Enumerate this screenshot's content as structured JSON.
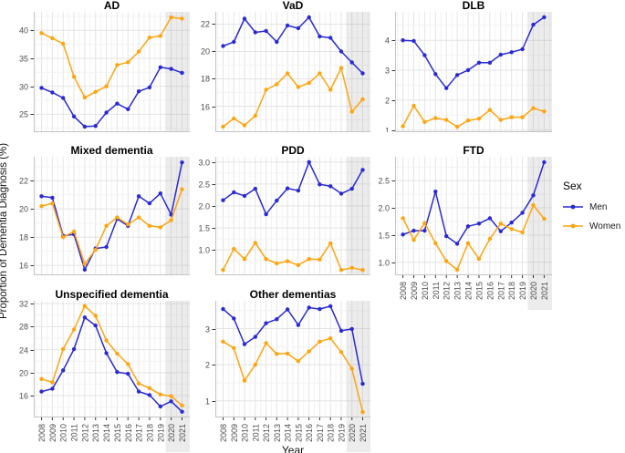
{
  "figure": {
    "y_axis_title": "Proportion of Dementia Diagnosis (%)",
    "x_axis_title": "Year",
    "highlight_years": [
      "2020",
      "2021"
    ]
  },
  "legend": {
    "title": "Sex",
    "entries": [
      {
        "label": "Men",
        "color": "#2a2ad2"
      },
      {
        "label": "Women",
        "color": "#ffa40e"
      }
    ]
  },
  "chart_data": [
    {
      "type": "line",
      "title": "AD",
      "x": [
        2008,
        2009,
        2010,
        2011,
        2012,
        2013,
        2014,
        2015,
        2016,
        2017,
        2018,
        2019,
        2020,
        2021
      ],
      "ylim": [
        21.8,
        43.3
      ],
      "yticks": [
        25,
        30,
        35,
        40
      ],
      "ytick_labels": [
        "25",
        "30",
        "35",
        "40"
      ],
      "series": [
        {
          "name": "Men",
          "values": [
            29.7,
            28.9,
            27.9,
            24.6,
            22.8,
            22.9,
            25.3,
            26.9,
            25.9,
            29.1,
            29.8,
            33.4,
            33.1,
            32.4
          ]
        },
        {
          "name": "Women",
          "values": [
            39.5,
            38.6,
            37.6,
            31.7,
            28.0,
            29.0,
            30.0,
            33.8,
            34.3,
            36.2,
            38.7,
            39.0,
            42.3,
            42.1
          ]
        }
      ]
    },
    {
      "type": "line",
      "title": "VaD",
      "x": [
        2008,
        2009,
        2010,
        2011,
        2012,
        2013,
        2014,
        2015,
        2016,
        2017,
        2018,
        2019,
        2020,
        2021
      ],
      "ylim": [
        14.1,
        22.9
      ],
      "yticks": [
        16,
        18,
        20,
        22
      ],
      "ytick_labels": [
        "16",
        "18",
        "20",
        "22"
      ],
      "series": [
        {
          "name": "Men",
          "values": [
            20.4,
            20.7,
            22.4,
            21.4,
            21.5,
            20.7,
            21.9,
            21.7,
            22.5,
            21.1,
            21.0,
            20.0,
            19.2,
            18.4
          ]
        },
        {
          "name": "Women",
          "values": [
            14.5,
            15.1,
            14.6,
            15.3,
            17.2,
            17.6,
            18.4,
            17.4,
            17.7,
            18.4,
            17.2,
            18.8,
            15.6,
            16.5
          ]
        }
      ]
    },
    {
      "type": "line",
      "title": "DLB",
      "x": [
        2008,
        2009,
        2010,
        2011,
        2012,
        2013,
        2014,
        2015,
        2016,
        2017,
        2018,
        2019,
        2020,
        2021
      ],
      "ylim": [
        0.93,
        4.95
      ],
      "yticks": [
        1,
        2,
        3,
        4
      ],
      "ytick_labels": [
        "1",
        "2",
        "3",
        "4"
      ],
      "series": [
        {
          "name": "Men",
          "values": [
            4.0,
            3.98,
            3.5,
            2.87,
            2.4,
            2.84,
            3.0,
            3.25,
            3.25,
            3.52,
            3.6,
            3.7,
            4.52,
            4.77
          ]
        },
        {
          "name": "Women",
          "values": [
            1.13,
            1.81,
            1.27,
            1.4,
            1.34,
            1.11,
            1.32,
            1.38,
            1.67,
            1.34,
            1.43,
            1.43,
            1.73,
            1.62
          ]
        }
      ]
    },
    {
      "type": "line",
      "title": "Mixed dementia",
      "x": [
        2008,
        2009,
        2010,
        2011,
        2012,
        2013,
        2014,
        2015,
        2016,
        2017,
        2018,
        2019,
        2020,
        2021
      ],
      "ylim": [
        15.3,
        23.7
      ],
      "yticks": [
        16,
        18,
        20,
        22
      ],
      "ytick_labels": [
        "16",
        "18",
        "20",
        "22"
      ],
      "series": [
        {
          "name": "Men",
          "values": [
            20.9,
            20.8,
            18.1,
            18.2,
            15.7,
            17.2,
            17.3,
            19.3,
            18.8,
            20.9,
            20.4,
            21.1,
            19.6,
            23.3
          ]
        },
        {
          "name": "Women",
          "values": [
            20.2,
            20.4,
            18.0,
            18.4,
            16.1,
            17.1,
            18.8,
            19.4,
            18.9,
            19.4,
            18.8,
            18.7,
            19.2,
            21.4
          ]
        }
      ]
    },
    {
      "type": "line",
      "title": "PDD",
      "x": [
        2008,
        2009,
        2010,
        2011,
        2012,
        2013,
        2014,
        2015,
        2016,
        2017,
        2018,
        2019,
        2020,
        2021
      ],
      "ylim": [
        0.42,
        3.12
      ],
      "yticks": [
        1.0,
        1.5,
        2.0,
        2.5,
        3.0
      ],
      "ytick_labels": [
        "1.0",
        "1.5",
        "2.0",
        "2.5",
        "3.0"
      ],
      "series": [
        {
          "name": "Men",
          "values": [
            2.13,
            2.31,
            2.23,
            2.39,
            1.81,
            2.12,
            2.4,
            2.35,
            3.0,
            2.49,
            2.45,
            2.28,
            2.39,
            2.82
          ]
        },
        {
          "name": "Women",
          "values": [
            0.54,
            1.02,
            0.79,
            1.16,
            0.79,
            0.69,
            0.74,
            0.65,
            0.79,
            0.78,
            1.15,
            0.54,
            0.59,
            0.54
          ]
        }
      ]
    },
    {
      "type": "line",
      "title": "FTD",
      "x": [
        2008,
        2009,
        2010,
        2011,
        2012,
        2013,
        2014,
        2015,
        2016,
        2017,
        2018,
        2019,
        2020,
        2021
      ],
      "ylim": [
        0.76,
        2.94
      ],
      "yticks": [
        1.0,
        1.5,
        2.0,
        2.5
      ],
      "ytick_labels": [
        "1.0",
        "1.5",
        "2.0",
        "2.5"
      ],
      "series": [
        {
          "name": "Men",
          "values": [
            1.51,
            1.58,
            1.58,
            2.3,
            1.48,
            1.34,
            1.66,
            1.71,
            1.81,
            1.57,
            1.73,
            1.91,
            2.23,
            2.84
          ]
        },
        {
          "name": "Women",
          "values": [
            1.81,
            1.41,
            1.72,
            1.35,
            1.02,
            0.86,
            1.35,
            1.06,
            1.43,
            1.71,
            1.61,
            1.55,
            2.05,
            1.8
          ]
        }
      ]
    },
    {
      "type": "line",
      "title": "Unspecified dementia",
      "x": [
        2008,
        2009,
        2010,
        2011,
        2012,
        2013,
        2014,
        2015,
        2016,
        2017,
        2018,
        2019,
        2020,
        2021
      ],
      "ylim": [
        12.2,
        32.5
      ],
      "yticks": [
        16,
        20,
        24,
        28,
        32
      ],
      "ytick_labels": [
        "16",
        "20",
        "24",
        "28",
        "32"
      ],
      "series": [
        {
          "name": "Men",
          "values": [
            16.7,
            17.2,
            20.4,
            24.1,
            29.6,
            28.2,
            23.4,
            20.1,
            19.8,
            16.7,
            16.1,
            14.1,
            15.0,
            13.2
          ]
        },
        {
          "name": "Women",
          "values": [
            18.9,
            18.3,
            24.1,
            27.5,
            31.6,
            29.9,
            25.6,
            23.3,
            21.5,
            18.1,
            17.3,
            16.2,
            15.9,
            14.3
          ]
        }
      ]
    },
    {
      "type": "line",
      "title": "Other dementias",
      "x": [
        2008,
        2009,
        2010,
        2011,
        2012,
        2013,
        2014,
        2015,
        2016,
        2017,
        2018,
        2019,
        2020,
        2021
      ],
      "ylim": [
        0.54,
        3.77
      ],
      "yticks": [
        1,
        2,
        3
      ],
      "ytick_labels": [
        "1",
        "2",
        "3"
      ],
      "series": [
        {
          "name": "Men",
          "values": [
            3.54,
            3.28,
            2.57,
            2.77,
            3.15,
            3.26,
            3.53,
            3.1,
            3.58,
            3.54,
            3.62,
            2.94,
            2.99,
            1.47
          ]
        },
        {
          "name": "Women",
          "values": [
            2.64,
            2.46,
            1.56,
            2.0,
            2.6,
            2.3,
            2.31,
            2.1,
            2.37,
            2.64,
            2.73,
            2.35,
            1.89,
            0.69
          ]
        }
      ]
    }
  ]
}
